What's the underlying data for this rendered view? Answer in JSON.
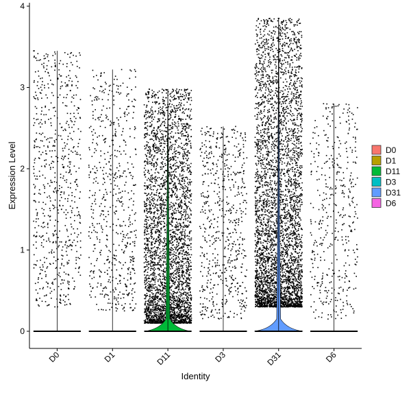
{
  "chart_data": {
    "type": "violin",
    "title": "",
    "xlabel": "Identity",
    "ylabel": "Expression Level",
    "ylim": [
      -0.22,
      4.05
    ],
    "yticks": [
      0,
      1,
      2,
      3,
      4
    ],
    "grid": false,
    "legend_position": "right",
    "categories": [
      "D0",
      "D1",
      "D11",
      "D3",
      "D31",
      "D6"
    ],
    "series": [
      {
        "name": "D0",
        "color": "#F8766D",
        "max": 3.45,
        "violin_width": 0.0,
        "point_count": 700,
        "point_range": [
          0.3,
          3.45
        ],
        "zero_line": true
      },
      {
        "name": "D1",
        "color": "#B79F00",
        "max": 3.22,
        "violin_width": 0.0,
        "point_count": 620,
        "point_range": [
          0.25,
          3.22
        ],
        "zero_line": true
      },
      {
        "name": "D11",
        "color": "#00BA38",
        "max": 2.98,
        "violin_width": 0.42,
        "point_count": 3600,
        "point_range": [
          0.1,
          2.98
        ],
        "zero_line": true
      },
      {
        "name": "D3",
        "color": "#00BFC4",
        "max": 2.52,
        "violin_width": 0.0,
        "point_count": 620,
        "point_range": [
          0.15,
          2.52
        ],
        "zero_line": true
      },
      {
        "name": "D31",
        "color": "#619CFF",
        "max": 3.85,
        "violin_width": 0.44,
        "point_count": 4200,
        "point_range": [
          0.3,
          3.85
        ],
        "zero_line": true
      },
      {
        "name": "D6",
        "color": "#F564E3",
        "max": 2.8,
        "violin_width": 0.0,
        "point_count": 450,
        "point_range": [
          0.15,
          2.8
        ],
        "zero_line": true
      }
    ]
  }
}
